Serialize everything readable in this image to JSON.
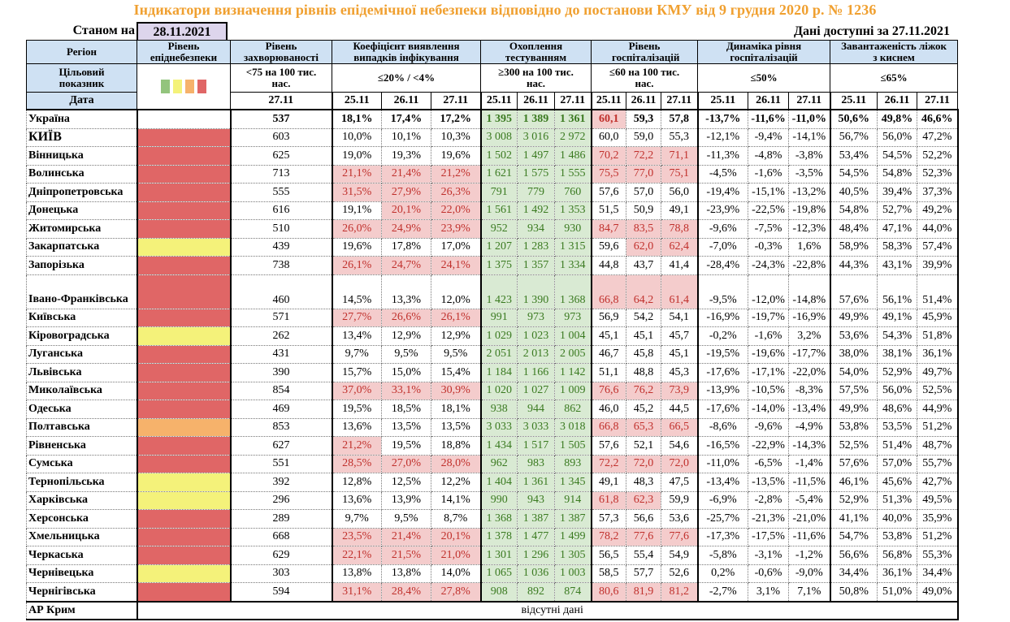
{
  "title": "Індикатори визначення рівнів епідемічної небезпеки відповідно до постанови КМУ від 9 грудня 2020 р. № 1236",
  "as_of_label": "Станом на",
  "as_of_date": "28.11.2021",
  "available_label": "Дані доступні за  27.11.2021",
  "headers": {
    "region": "Регіон",
    "level": "Рівень епіднебезпеки",
    "incidence": "Рівень захворюваності",
    "detection": "Коефіцієнт виявлення випадків інфікування",
    "testing": "Охоплення тестуванням",
    "hospitalization": "Рівень госпіталізацій",
    "hosp_dynamics": "Динаміка рівня госпіталізацій",
    "oxygen_beds": "Завантаженість ліжок з киснем"
  },
  "targets": {
    "label": "Цільовий показник",
    "incidence": "<75 на 100 тис. нас.",
    "detection": "≤20% / <4%",
    "testing": "≥300 на 100 тис. нас.",
    "hospitalization": "≤60 на 100 тис. нас.",
    "hosp_dynamics": "≤50%",
    "oxygen_beds": "≤65%"
  },
  "legend_colors": [
    "#93c47d",
    "#f4f27a",
    "#f6b26b",
    "#e06666"
  ],
  "dates": {
    "label": "Дата",
    "incidence": "27.11",
    "triple": [
      "25.11",
      "26.11",
      "27.11"
    ]
  },
  "rows": [
    {
      "region": "Україна",
      "level": "",
      "incidence": "537",
      "det": [
        "18,1%",
        "17,4%",
        "17,2%"
      ],
      "test": [
        "1 395",
        "1 389",
        "1 361"
      ],
      "hosp": [
        "60,1",
        "59,3",
        "57,8"
      ],
      "dyn": [
        "-13,7%",
        "-11,6%",
        "-11,0%"
      ],
      "beds": [
        "50,6%",
        "49,8%",
        "46,6%"
      ]
    },
    {
      "region": "КИЇВ",
      "level": "red",
      "incidence": "603",
      "det": [
        "10,0%",
        "10,1%",
        "10,3%"
      ],
      "test": [
        "3 008",
        "3 016",
        "2 972"
      ],
      "hosp": [
        "60,0",
        "59,0",
        "55,3"
      ],
      "dyn": [
        "-12,1%",
        "-9,4%",
        "-14,1%"
      ],
      "beds": [
        "56,7%",
        "56,0%",
        "47,2%"
      ]
    },
    {
      "region": "Вінницька",
      "level": "red",
      "incidence": "625",
      "det": [
        "19,0%",
        "19,3%",
        "19,6%"
      ],
      "test": [
        "1 502",
        "1 497",
        "1 486"
      ],
      "hosp": [
        "70,2",
        "72,2",
        "71,1"
      ],
      "dyn": [
        "-11,3%",
        "-4,8%",
        "-3,8%"
      ],
      "beds": [
        "53,4%",
        "54,5%",
        "52,2%"
      ]
    },
    {
      "region": "Волинська",
      "level": "red",
      "incidence": "713",
      "det": [
        "21,1%",
        "21,4%",
        "21,2%"
      ],
      "test": [
        "1 621",
        "1 575",
        "1 555"
      ],
      "hosp": [
        "75,5",
        "77,0",
        "75,1"
      ],
      "dyn": [
        "-4,5%",
        "-1,6%",
        "-3,5%"
      ],
      "beds": [
        "54,5%",
        "54,8%",
        "52,3%"
      ]
    },
    {
      "region": "Дніпропетровська",
      "level": "red",
      "incidence": "555",
      "det": [
        "31,5%",
        "27,9%",
        "26,3%"
      ],
      "test": [
        "791",
        "779",
        "760"
      ],
      "hosp": [
        "57,6",
        "57,0",
        "56,0"
      ],
      "dyn": [
        "-19,4%",
        "-15,1%",
        "-13,2%"
      ],
      "beds": [
        "40,5%",
        "39,4%",
        "37,3%"
      ]
    },
    {
      "region": "Донецька",
      "level": "red",
      "incidence": "616",
      "det": [
        "19,1%",
        "20,1%",
        "22,0%"
      ],
      "test": [
        "1 561",
        "1 492",
        "1 353"
      ],
      "hosp": [
        "51,5",
        "50,9",
        "49,1"
      ],
      "dyn": [
        "-23,9%",
        "-22,5%",
        "-19,8%"
      ],
      "beds": [
        "54,8%",
        "52,7%",
        "49,2%"
      ]
    },
    {
      "region": "Житомирська",
      "level": "red",
      "incidence": "510",
      "det": [
        "26,0%",
        "24,9%",
        "23,9%"
      ],
      "test": [
        "952",
        "934",
        "930"
      ],
      "hosp": [
        "84,7",
        "83,5",
        "78,8"
      ],
      "dyn": [
        "-9,6%",
        "-7,5%",
        "-12,3%"
      ],
      "beds": [
        "48,4%",
        "47,1%",
        "44,0%"
      ]
    },
    {
      "region": "Закарпатська",
      "level": "yellow",
      "incidence": "439",
      "det": [
        "19,6%",
        "17,8%",
        "17,0%"
      ],
      "test": [
        "1 207",
        "1 283",
        "1 315"
      ],
      "hosp": [
        "59,6",
        "62,0",
        "62,4"
      ],
      "dyn": [
        "-7,0%",
        "-0,3%",
        "1,6%"
      ],
      "beds": [
        "58,9%",
        "58,3%",
        "57,4%"
      ]
    },
    {
      "region": "Запорізька",
      "level": "red",
      "incidence": "738",
      "det": [
        "26,1%",
        "24,7%",
        "24,1%"
      ],
      "test": [
        "1 375",
        "1 357",
        "1 334"
      ],
      "hosp": [
        "44,8",
        "43,7",
        "41,4"
      ],
      "dyn": [
        "-28,4%",
        "-24,3%",
        "-22,8%"
      ],
      "beds": [
        "44,3%",
        "43,1%",
        "39,9%"
      ]
    },
    {
      "region": "Івано-Франківська",
      "level": "red",
      "incidence": "460",
      "det": [
        "14,5%",
        "13,3%",
        "12,0%"
      ],
      "test": [
        "1 423",
        "1 390",
        "1 368"
      ],
      "hosp": [
        "66,8",
        "64,2",
        "61,4"
      ],
      "dyn": [
        "-9,5%",
        "-12,0%",
        "-14,8%"
      ],
      "beds": [
        "57,6%",
        "56,1%",
        "51,4%"
      ]
    },
    {
      "region": "Київська",
      "level": "red",
      "incidence": "571",
      "det": [
        "27,7%",
        "26,6%",
        "26,1%"
      ],
      "test": [
        "991",
        "973",
        "973"
      ],
      "hosp": [
        "56,9",
        "54,2",
        "54,1"
      ],
      "dyn": [
        "-16,9%",
        "-19,7%",
        "-16,9%"
      ],
      "beds": [
        "49,9%",
        "49,1%",
        "45,9%"
      ]
    },
    {
      "region": "Кіровоградська",
      "level": "yellow",
      "incidence": "262",
      "det": [
        "13,4%",
        "12,9%",
        "12,9%"
      ],
      "test": [
        "1 029",
        "1 023",
        "1 004"
      ],
      "hosp": [
        "45,1",
        "45,1",
        "45,7"
      ],
      "dyn": [
        "-0,2%",
        "-1,6%",
        "3,2%"
      ],
      "beds": [
        "53,6%",
        "54,3%",
        "51,8%"
      ]
    },
    {
      "region": "Луганська",
      "level": "red",
      "incidence": "431",
      "det": [
        "9,7%",
        "9,5%",
        "9,5%"
      ],
      "test": [
        "2 051",
        "2 013",
        "2 005"
      ],
      "hosp": [
        "46,7",
        "45,8",
        "45,1"
      ],
      "dyn": [
        "-19,5%",
        "-19,6%",
        "-17,7%"
      ],
      "beds": [
        "38,0%",
        "38,1%",
        "36,1%"
      ]
    },
    {
      "region": "Львівська",
      "level": "red",
      "incidence": "390",
      "det": [
        "15,7%",
        "15,0%",
        "15,4%"
      ],
      "test": [
        "1 184",
        "1 166",
        "1 142"
      ],
      "hosp": [
        "51,1",
        "48,8",
        "45,3"
      ],
      "dyn": [
        "-17,6%",
        "-17,1%",
        "-22,0%"
      ],
      "beds": [
        "54,0%",
        "52,9%",
        "49,7%"
      ]
    },
    {
      "region": "Миколаївська",
      "level": "red",
      "incidence": "854",
      "det": [
        "37,0%",
        "33,1%",
        "30,9%"
      ],
      "test": [
        "1 020",
        "1 027",
        "1 009"
      ],
      "hosp": [
        "76,6",
        "76,2",
        "73,9"
      ],
      "dyn": [
        "-13,9%",
        "-10,5%",
        "-8,3%"
      ],
      "beds": [
        "57,5%",
        "56,0%",
        "52,5%"
      ]
    },
    {
      "region": "Одеська",
      "level": "red",
      "incidence": "469",
      "det": [
        "19,5%",
        "18,5%",
        "18,1%"
      ],
      "test": [
        "938",
        "944",
        "862"
      ],
      "hosp": [
        "46,0",
        "45,2",
        "44,5"
      ],
      "dyn": [
        "-17,6%",
        "-14,0%",
        "-13,4%"
      ],
      "beds": [
        "49,9%",
        "48,6%",
        "44,9%"
      ]
    },
    {
      "region": "Полтавська",
      "level": "orange",
      "incidence": "853",
      "det": [
        "13,6%",
        "13,5%",
        "13,5%"
      ],
      "test": [
        "3 033",
        "3 033",
        "3 018"
      ],
      "hosp": [
        "66,8",
        "65,3",
        "66,5"
      ],
      "dyn": [
        "-8,6%",
        "-9,6%",
        "-4,9%"
      ],
      "beds": [
        "53,8%",
        "53,5%",
        "51,2%"
      ]
    },
    {
      "region": "Рівненська",
      "level": "red",
      "incidence": "627",
      "det": [
        "21,2%",
        "19,5%",
        "18,8%"
      ],
      "test": [
        "1 434",
        "1 517",
        "1 505"
      ],
      "hosp": [
        "57,6",
        "52,1",
        "54,6"
      ],
      "dyn": [
        "-16,5%",
        "-22,9%",
        "-14,3%"
      ],
      "beds": [
        "52,5%",
        "51,4%",
        "48,7%"
      ]
    },
    {
      "region": "Сумська",
      "level": "red",
      "incidence": "551",
      "det": [
        "28,5%",
        "27,0%",
        "28,0%"
      ],
      "test": [
        "962",
        "983",
        "893"
      ],
      "hosp": [
        "72,2",
        "72,0",
        "72,0"
      ],
      "dyn": [
        "-11,0%",
        "-6,5%",
        "-1,4%"
      ],
      "beds": [
        "57,6%",
        "57,0%",
        "55,7%"
      ]
    },
    {
      "region": "Тернопільська",
      "level": "yellow",
      "incidence": "392",
      "det": [
        "12,8%",
        "12,5%",
        "12,2%"
      ],
      "test": [
        "1 404",
        "1 361",
        "1 345"
      ],
      "hosp": [
        "49,1",
        "48,3",
        "47,5"
      ],
      "dyn": [
        "-13,4%",
        "-13,5%",
        "-11,5%"
      ],
      "beds": [
        "46,1%",
        "45,6%",
        "42,7%"
      ]
    },
    {
      "region": "Харківська",
      "level": "yellow",
      "incidence": "296",
      "det": [
        "13,6%",
        "13,9%",
        "14,1%"
      ],
      "test": [
        "990",
        "943",
        "914"
      ],
      "hosp": [
        "61,8",
        "62,3",
        "59,9"
      ],
      "dyn": [
        "-6,9%",
        "-2,8%",
        "-5,4%"
      ],
      "beds": [
        "52,9%",
        "51,3%",
        "49,5%"
      ]
    },
    {
      "region": "Херсонська",
      "level": "red",
      "incidence": "289",
      "det": [
        "9,7%",
        "9,5%",
        "8,7%"
      ],
      "test": [
        "1 368",
        "1 387",
        "1 387"
      ],
      "hosp": [
        "57,3",
        "56,6",
        "53,6"
      ],
      "dyn": [
        "-25,7%",
        "-21,3%",
        "-21,0%"
      ],
      "beds": [
        "41,1%",
        "40,0%",
        "35,9%"
      ]
    },
    {
      "region": "Хмельницька",
      "level": "red",
      "incidence": "668",
      "det": [
        "23,5%",
        "21,4%",
        "20,1%"
      ],
      "test": [
        "1 378",
        "1 477",
        "1 499"
      ],
      "hosp": [
        "78,2",
        "77,6",
        "77,6"
      ],
      "dyn": [
        "-17,3%",
        "-17,5%",
        "-11,6%"
      ],
      "beds": [
        "54,7%",
        "53,8%",
        "51,2%"
      ]
    },
    {
      "region": "Черкаська",
      "level": "red",
      "incidence": "629",
      "det": [
        "22,1%",
        "21,5%",
        "21,0%"
      ],
      "test": [
        "1 301",
        "1 296",
        "1 305"
      ],
      "hosp": [
        "56,5",
        "55,4",
        "54,9"
      ],
      "dyn": [
        "-5,8%",
        "-3,1%",
        "-1,2%"
      ],
      "beds": [
        "56,6%",
        "56,8%",
        "55,3%"
      ]
    },
    {
      "region": "Чернівецька",
      "level": "yellow",
      "incidence": "303",
      "det": [
        "13,8%",
        "13,8%",
        "14,0%"
      ],
      "test": [
        "1 065",
        "1 036",
        "1 003"
      ],
      "hosp": [
        "58,5",
        "57,7",
        "52,6"
      ],
      "dyn": [
        "0,2%",
        "-0,6%",
        "-9,0%"
      ],
      "beds": [
        "34,4%",
        "36,1%",
        "34,4%"
      ]
    },
    {
      "region": "Чернігівська",
      "level": "red",
      "incidence": "594",
      "det": [
        "31,1%",
        "28,4%",
        "27,8%"
      ],
      "test": [
        "908",
        "892",
        "874"
      ],
      "hosp": [
        "80,6",
        "81,9",
        "81,2"
      ],
      "dyn": [
        "-2,7%",
        "3,1%",
        "7,1%"
      ],
      "beds": [
        "50,8%",
        "51,0%",
        "49,0%"
      ]
    }
  ],
  "crimea": {
    "region": "АР Крим",
    "note": "відсутні дані"
  }
}
